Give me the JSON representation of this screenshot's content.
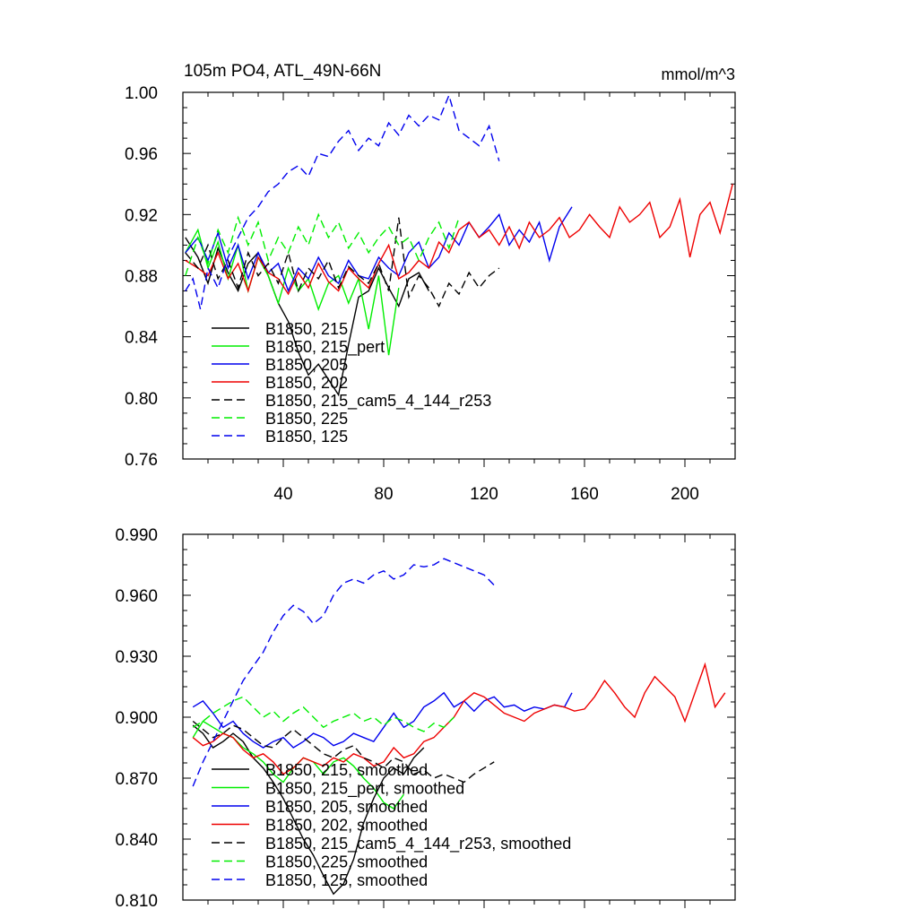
{
  "figure": {
    "title_left": "105m PO4, ATL_49N-66N",
    "title_right": "mmol/m^3"
  },
  "chart_data": [
    {
      "type": "line",
      "name": "raw",
      "xlim": [
        0,
        220
      ],
      "ylim": [
        0.76,
        1.0
      ],
      "xticks": [
        40,
        80,
        120,
        160,
        200
      ],
      "yticks": [
        0.76,
        0.8,
        0.84,
        0.88,
        0.92,
        0.96,
        1.0
      ],
      "ytick_labels": [
        "0.76",
        "0.80",
        "0.84",
        "0.88",
        "0.92",
        "0.96",
        "1.00"
      ],
      "series": [
        {
          "name": "B1850, 215",
          "color": "#000000",
          "dash": false,
          "x": [
            1,
            6,
            10,
            14,
            18,
            22,
            26,
            30,
            34,
            38,
            42,
            46,
            50,
            54,
            58,
            62,
            66,
            70,
            74,
            78,
            82,
            86,
            90,
            94,
            98
          ],
          "y": [
            0.905,
            0.892,
            0.875,
            0.898,
            0.882,
            0.87,
            0.888,
            0.895,
            0.88,
            0.862,
            0.85,
            0.83,
            0.815,
            0.822,
            0.812,
            0.802,
            0.835,
            0.866,
            0.87,
            0.885,
            0.872,
            0.86,
            0.878,
            0.882,
            0.87
          ]
        },
        {
          "name": "B1850, 215_pert",
          "color": "#00ee00",
          "dash": false,
          "x": [
            1,
            6,
            10,
            14,
            18,
            22,
            26,
            30,
            34,
            38,
            42,
            46,
            50,
            54,
            58,
            62,
            66,
            70,
            74,
            78,
            82,
            86
          ],
          "y": [
            0.895,
            0.91,
            0.885,
            0.902,
            0.878,
            0.9,
            0.87,
            0.892,
            0.88,
            0.862,
            0.885,
            0.87,
            0.878,
            0.858,
            0.875,
            0.88,
            0.862,
            0.878,
            0.845,
            0.88,
            0.828,
            0.872
          ]
        },
        {
          "name": "B1850, 205",
          "color": "#0000ee",
          "dash": false,
          "x": [
            1,
            6,
            10,
            14,
            18,
            22,
            26,
            30,
            34,
            38,
            42,
            46,
            50,
            54,
            58,
            62,
            66,
            70,
            74,
            78,
            82,
            86,
            90,
            94,
            98,
            102,
            106,
            110,
            114,
            118,
            122,
            126,
            130,
            134,
            138,
            142,
            146,
            150,
            155
          ],
          "y": [
            0.895,
            0.905,
            0.89,
            0.908,
            0.885,
            0.9,
            0.878,
            0.895,
            0.882,
            0.888,
            0.87,
            0.885,
            0.878,
            0.892,
            0.88,
            0.875,
            0.89,
            0.88,
            0.878,
            0.892,
            0.885,
            0.88,
            0.895,
            0.902,
            0.885,
            0.892,
            0.908,
            0.9,
            0.915,
            0.905,
            0.912,
            0.92,
            0.9,
            0.91,
            0.902,
            0.915,
            0.89,
            0.912,
            0.925
          ]
        },
        {
          "name": "B1850, 202",
          "color": "#ee0000",
          "dash": false,
          "x": [
            1,
            6,
            10,
            14,
            18,
            22,
            26,
            30,
            34,
            38,
            42,
            46,
            50,
            54,
            58,
            62,
            66,
            70,
            74,
            78,
            82,
            86,
            90,
            94,
            98,
            102,
            106,
            110,
            114,
            118,
            122,
            126,
            130,
            134,
            138,
            142,
            146,
            150,
            154,
            158,
            162,
            166,
            170,
            174,
            178,
            182,
            186,
            190,
            194,
            198,
            202,
            206,
            210,
            214,
            219
          ],
          "y": [
            0.89,
            0.885,
            0.88,
            0.895,
            0.878,
            0.888,
            0.87,
            0.892,
            0.882,
            0.878,
            0.868,
            0.882,
            0.872,
            0.888,
            0.876,
            0.87,
            0.885,
            0.878,
            0.872,
            0.888,
            0.9,
            0.878,
            0.882,
            0.89,
            0.885,
            0.902,
            0.895,
            0.91,
            0.915,
            0.905,
            0.91,
            0.9,
            0.912,
            0.898,
            0.915,
            0.905,
            0.91,
            0.918,
            0.905,
            0.91,
            0.92,
            0.912,
            0.905,
            0.925,
            0.915,
            0.92,
            0.928,
            0.905,
            0.912,
            0.93,
            0.892,
            0.92,
            0.928,
            0.908,
            0.94
          ]
        },
        {
          "name": "B1850, 215_cam5_4_144_r253",
          "color": "#000000",
          "dash": true,
          "x": [
            1,
            6,
            10,
            14,
            18,
            22,
            26,
            30,
            34,
            38,
            42,
            46,
            50,
            54,
            58,
            62,
            66,
            70,
            74,
            78,
            82,
            86,
            90,
            94,
            98,
            102,
            106,
            110,
            114,
            118,
            122,
            126
          ],
          "y": [
            0.895,
            0.885,
            0.9,
            0.878,
            0.89,
            0.872,
            0.895,
            0.88,
            0.888,
            0.875,
            0.895,
            0.87,
            0.885,
            0.878,
            0.89,
            0.872,
            0.886,
            0.88,
            0.875,
            0.888,
            0.87,
            0.918,
            0.866,
            0.88,
            0.872,
            0.86,
            0.875,
            0.868,
            0.882,
            0.872,
            0.88,
            0.885
          ]
        },
        {
          "name": "B1850, 225",
          "color": "#00ee00",
          "dash": true,
          "x": [
            1,
            6,
            10,
            14,
            18,
            22,
            26,
            30,
            34,
            38,
            42,
            46,
            50,
            54,
            58,
            62,
            66,
            70,
            74,
            78,
            82,
            86,
            90,
            94,
            98,
            102,
            106,
            110
          ],
          "y": [
            0.88,
            0.905,
            0.888,
            0.91,
            0.895,
            0.918,
            0.9,
            0.915,
            0.89,
            0.905,
            0.895,
            0.912,
            0.9,
            0.92,
            0.905,
            0.915,
            0.898,
            0.908,
            0.895,
            0.905,
            0.912,
            0.9,
            0.905,
            0.89,
            0.905,
            0.915,
            0.898,
            0.918
          ]
        },
        {
          "name": "B1850, 125",
          "color": "#0000ee",
          "dash": true,
          "x": [
            1,
            4,
            7,
            10,
            14,
            18,
            22,
            26,
            30,
            34,
            38,
            42,
            46,
            50,
            54,
            58,
            62,
            66,
            70,
            74,
            78,
            82,
            86,
            90,
            94,
            98,
            102,
            106,
            110,
            114,
            118,
            122,
            126
          ],
          "y": [
            0.87,
            0.878,
            0.858,
            0.885,
            0.872,
            0.892,
            0.905,
            0.918,
            0.925,
            0.935,
            0.94,
            0.948,
            0.952,
            0.945,
            0.96,
            0.958,
            0.968,
            0.975,
            0.962,
            0.97,
            0.965,
            0.98,
            0.972,
            0.985,
            0.978,
            0.985,
            0.982,
            0.998,
            0.975,
            0.97,
            0.965,
            0.978,
            0.955
          ]
        }
      ]
    },
    {
      "type": "line",
      "name": "smoothed",
      "xlim": [
        0,
        220
      ],
      "ylim": [
        0.81,
        0.99
      ],
      "xticks": [
        40,
        80,
        120,
        160,
        200
      ],
      "yticks": [
        0.81,
        0.84,
        0.87,
        0.9,
        0.93,
        0.96,
        0.99
      ],
      "ytick_labels": [
        "0.810",
        "0.840",
        "0.870",
        "0.900",
        "0.930",
        "0.960",
        "0.990"
      ],
      "series": [
        {
          "name": "B1850, 215, smoothed",
          "color": "#000000",
          "dash": false,
          "x": [
            4,
            8,
            12,
            16,
            20,
            24,
            28,
            32,
            36,
            40,
            44,
            48,
            52,
            56,
            60,
            64,
            68,
            72,
            76,
            80,
            84,
            88,
            92,
            96
          ],
          "y": [
            0.896,
            0.892,
            0.885,
            0.888,
            0.892,
            0.888,
            0.88,
            0.875,
            0.868,
            0.86,
            0.85,
            0.84,
            0.832,
            0.822,
            0.813,
            0.818,
            0.83,
            0.848,
            0.86,
            0.87,
            0.875,
            0.872,
            0.88,
            0.885
          ]
        },
        {
          "name": "B1850, 215_pert, smoothed",
          "color": "#00ee00",
          "dash": false,
          "x": [
            4,
            8,
            12,
            16,
            20,
            24,
            28,
            32,
            36,
            40,
            44,
            48,
            52,
            56,
            60,
            64,
            68,
            72,
            76,
            80,
            84,
            88
          ],
          "y": [
            0.89,
            0.898,
            0.895,
            0.892,
            0.89,
            0.885,
            0.882,
            0.878,
            0.872,
            0.868,
            0.875,
            0.88,
            0.878,
            0.872,
            0.878,
            0.88,
            0.876,
            0.87,
            0.865,
            0.858,
            0.855,
            0.862
          ]
        },
        {
          "name": "B1850, 205, smoothed",
          "color": "#0000ee",
          "dash": false,
          "x": [
            4,
            8,
            12,
            16,
            20,
            24,
            28,
            32,
            36,
            40,
            44,
            48,
            52,
            56,
            60,
            64,
            68,
            72,
            76,
            80,
            84,
            88,
            92,
            96,
            100,
            104,
            108,
            112,
            116,
            120,
            124,
            128,
            132,
            136,
            140,
            144,
            148,
            152,
            155
          ],
          "y": [
            0.905,
            0.908,
            0.902,
            0.895,
            0.898,
            0.892,
            0.888,
            0.885,
            0.888,
            0.89,
            0.885,
            0.888,
            0.892,
            0.89,
            0.886,
            0.888,
            0.892,
            0.89,
            0.888,
            0.895,
            0.902,
            0.895,
            0.898,
            0.905,
            0.908,
            0.912,
            0.905,
            0.908,
            0.903,
            0.908,
            0.91,
            0.905,
            0.906,
            0.903,
            0.905,
            0.904,
            0.906,
            0.905,
            0.912
          ]
        },
        {
          "name": "B1850, 202, smoothed",
          "color": "#ee0000",
          "dash": false,
          "x": [
            4,
            8,
            12,
            16,
            20,
            24,
            28,
            32,
            36,
            40,
            44,
            48,
            52,
            56,
            60,
            64,
            68,
            72,
            76,
            80,
            84,
            88,
            92,
            96,
            100,
            104,
            108,
            112,
            116,
            120,
            124,
            128,
            132,
            136,
            140,
            144,
            148,
            152,
            156,
            160,
            164,
            168,
            172,
            176,
            180,
            184,
            188,
            192,
            196,
            200,
            204,
            208,
            212,
            216
          ],
          "y": [
            0.89,
            0.886,
            0.888,
            0.892,
            0.89,
            0.884,
            0.88,
            0.882,
            0.878,
            0.872,
            0.875,
            0.88,
            0.878,
            0.876,
            0.88,
            0.878,
            0.882,
            0.88,
            0.876,
            0.878,
            0.885,
            0.88,
            0.882,
            0.888,
            0.89,
            0.895,
            0.9,
            0.908,
            0.912,
            0.91,
            0.906,
            0.902,
            0.9,
            0.898,
            0.902,
            0.904,
            0.906,
            0.905,
            0.903,
            0.904,
            0.91,
            0.918,
            0.912,
            0.905,
            0.9,
            0.912,
            0.92,
            0.915,
            0.91,
            0.898,
            0.912,
            0.926,
            0.905,
            0.912
          ]
        },
        {
          "name": "B1850, 215_cam5_4_144_r253, smoothed",
          "color": "#000000",
          "dash": true,
          "x": [
            4,
            8,
            12,
            16,
            20,
            24,
            28,
            32,
            36,
            40,
            44,
            48,
            52,
            56,
            60,
            64,
            68,
            72,
            76,
            80,
            84,
            88,
            92,
            96,
            100,
            104,
            108,
            112,
            116,
            120,
            124
          ],
          "y": [
            0.898,
            0.894,
            0.89,
            0.892,
            0.896,
            0.894,
            0.89,
            0.886,
            0.885,
            0.89,
            0.894,
            0.89,
            0.886,
            0.882,
            0.88,
            0.884,
            0.886,
            0.88,
            0.878,
            0.875,
            0.88,
            0.878,
            0.872,
            0.874,
            0.87,
            0.872,
            0.87,
            0.868,
            0.872,
            0.875,
            0.878
          ]
        },
        {
          "name": "B1850, 225, smoothed",
          "color": "#00ee00",
          "dash": true,
          "x": [
            4,
            8,
            12,
            16,
            20,
            24,
            28,
            32,
            36,
            40,
            44,
            48,
            52,
            56,
            60,
            64,
            68,
            72,
            76,
            80,
            84,
            88,
            92,
            96,
            100,
            104,
            108
          ],
          "y": [
            0.895,
            0.898,
            0.902,
            0.905,
            0.908,
            0.91,
            0.905,
            0.9,
            0.903,
            0.898,
            0.902,
            0.905,
            0.9,
            0.895,
            0.898,
            0.9,
            0.902,
            0.898,
            0.9,
            0.896,
            0.9,
            0.898,
            0.895,
            0.893,
            0.897,
            0.895,
            0.9
          ]
        },
        {
          "name": "B1850, 125, smoothed",
          "color": "#0000ee",
          "dash": true,
          "x": [
            4,
            8,
            12,
            16,
            20,
            24,
            28,
            32,
            36,
            40,
            44,
            48,
            52,
            56,
            60,
            64,
            68,
            72,
            76,
            80,
            84,
            88,
            92,
            96,
            100,
            104,
            108,
            112,
            116,
            120,
            124
          ],
          "y": [
            0.866,
            0.878,
            0.888,
            0.898,
            0.908,
            0.918,
            0.925,
            0.932,
            0.942,
            0.95,
            0.955,
            0.952,
            0.946,
            0.95,
            0.96,
            0.966,
            0.968,
            0.966,
            0.97,
            0.972,
            0.968,
            0.97,
            0.975,
            0.974,
            0.975,
            0.978,
            0.976,
            0.974,
            0.972,
            0.97,
            0.965
          ]
        }
      ]
    }
  ]
}
